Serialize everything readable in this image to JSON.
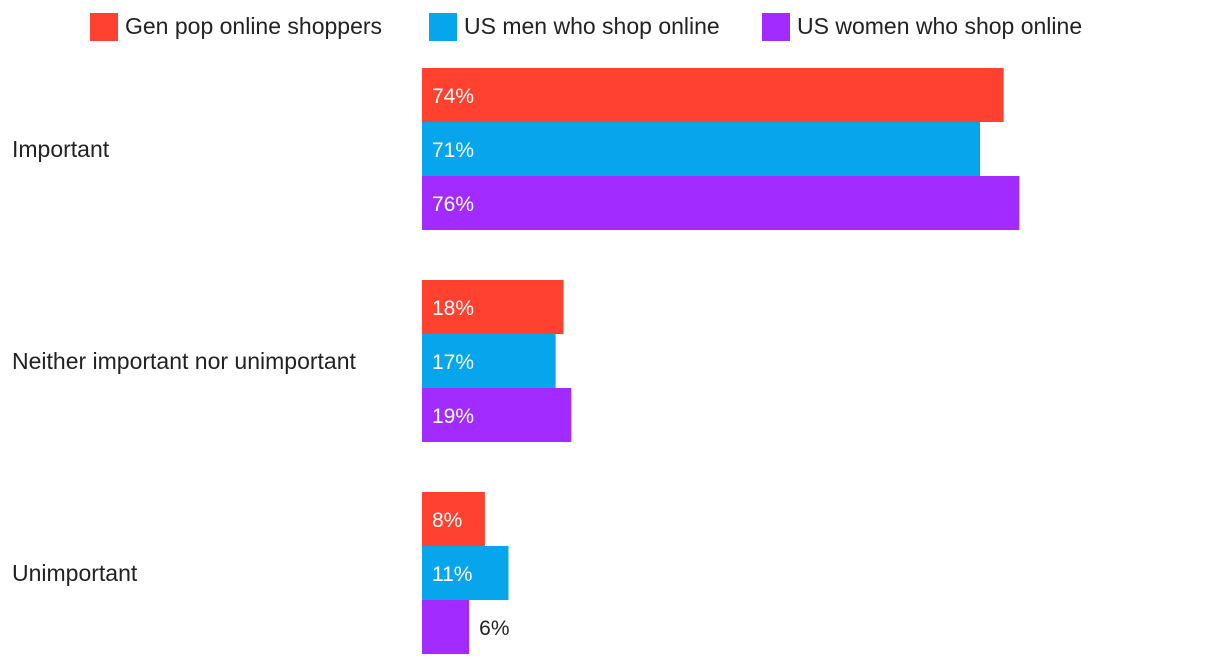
{
  "chart_data": {
    "type": "bar",
    "orientation": "horizontal",
    "categories": [
      "Important",
      "Neither important nor unimportant",
      "Unimportant"
    ],
    "series": [
      {
        "name": "Gen pop online shoppers",
        "color": "#ff4230",
        "values": [
          74,
          18,
          8
        ]
      },
      {
        "name": "US men who shop online",
        "color": "#07a5ec",
        "values": [
          71,
          17,
          11
        ]
      },
      {
        "name": "US women who shop online",
        "color": "#a22cff",
        "values": [
          76,
          19,
          6
        ]
      }
    ],
    "value_suffix": "%",
    "title": "",
    "xlabel": "",
    "ylabel": "",
    "xlim": [
      0,
      100
    ],
    "grid": false,
    "legend_position": "top"
  }
}
